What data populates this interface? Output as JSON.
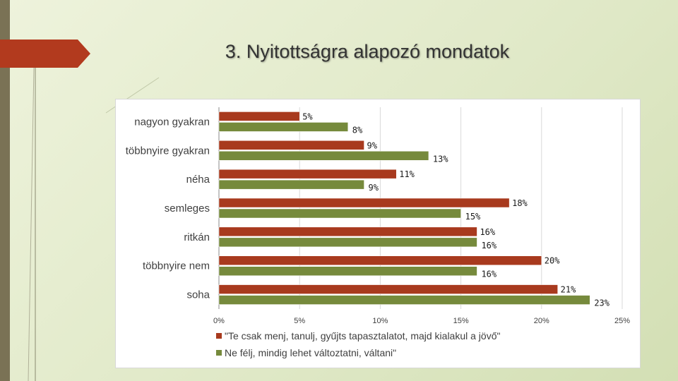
{
  "slide": {
    "title": "3. Nyitottságra alapozó mondatok"
  },
  "colors": {
    "background": "#e3ebcd",
    "accent_red": "#b23a1e",
    "series_1": "#a83a1e",
    "series_2": "#768a3c"
  },
  "chart_data": {
    "type": "bar",
    "orientation": "horizontal",
    "categories": [
      "nagyon gyakran",
      "többnyire gyakran",
      "néha",
      "semleges",
      "ritkán",
      "többnyire nem",
      "soha"
    ],
    "series": [
      {
        "name": "\"Te csak menj, tanulj, gyűjts tapasztalatot, majd kialakul a jövő\"",
        "values": [
          5,
          9,
          11,
          18,
          16,
          20,
          21
        ],
        "labels": [
          "5%",
          "9%",
          "11%",
          "18%",
          "16%",
          "20%",
          "21%"
        ],
        "color": "#a83a1e"
      },
      {
        "name": "Ne félj, mindig lehet változtatni, váltani\"",
        "values": [
          8,
          13,
          9,
          15,
          16,
          16,
          23
        ],
        "labels": [
          "8%",
          "13%",
          "9%",
          "15%",
          "16%",
          "16%",
          "23%"
        ],
        "color": "#768a3c"
      }
    ],
    "x_ticks": [
      "0%",
      "5%",
      "10%",
      "15%",
      "20%",
      "25%"
    ],
    "xlim": [
      0,
      25
    ],
    "grid": true,
    "legend_position": "bottom"
  }
}
